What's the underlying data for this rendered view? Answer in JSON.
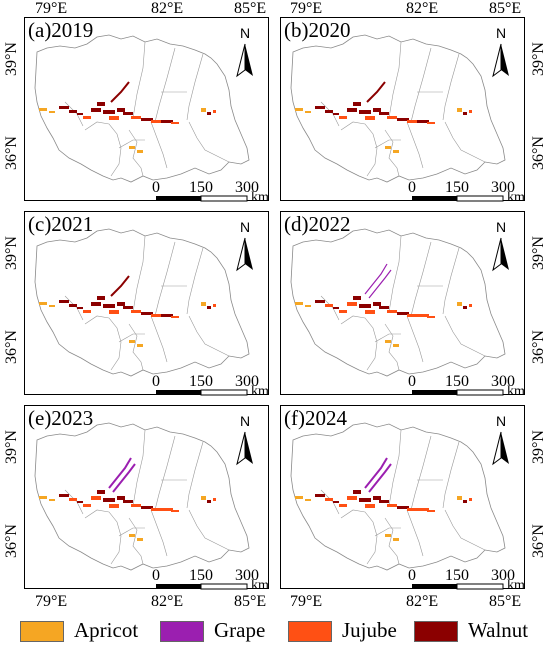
{
  "panels": [
    {
      "label": "(a)2019"
    },
    {
      "label": "(b)2020"
    },
    {
      "label": "(c)2021"
    },
    {
      "label": "(d)2022"
    },
    {
      "label": "(e)2023"
    },
    {
      "label": "(f)2024"
    }
  ],
  "axes": {
    "lon_labels": [
      "79°E",
      "82°E",
      "85°E"
    ],
    "lat_labels": [
      "39°N",
      "36°N"
    ]
  },
  "scale_bar": {
    "ticks": [
      "0",
      "150",
      "300"
    ],
    "unit": "km"
  },
  "north_arrow": {
    "letter": "N",
    "icon": "north-arrow-icon"
  },
  "legend": [
    {
      "label": "Apricot",
      "color": "#F5A623"
    },
    {
      "label": "Grape",
      "color": "#9B1FB0"
    },
    {
      "label": "Jujube",
      "color": "#FF5014"
    },
    {
      "label": "Walnut",
      "color": "#8B0000"
    }
  ]
}
